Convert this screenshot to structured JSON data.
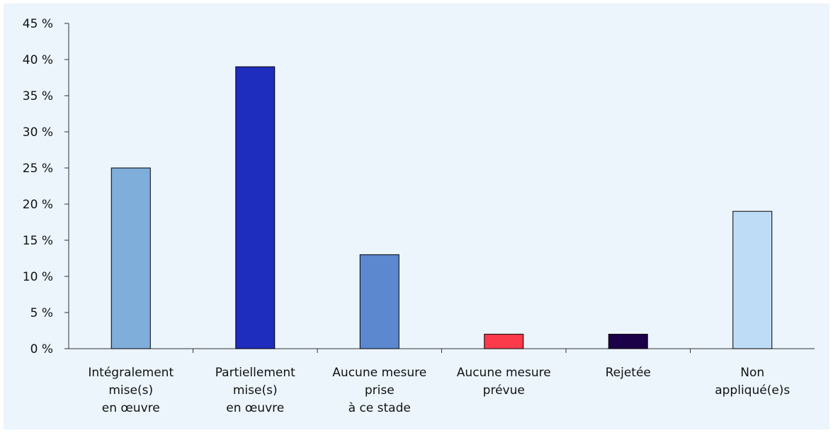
{
  "chart_data": {
    "type": "bar",
    "categories": [
      [
        "Intégralement",
        "mise(s)",
        "en œuvre"
      ],
      [
        "Partiellement",
        "mise(s)",
        "en œuvre"
      ],
      [
        "Aucune mesure",
        "prise",
        "à ce stade"
      ],
      [
        "Aucune mesure",
        "prévue"
      ],
      [
        "Rejetée"
      ],
      [
        "Non",
        "appliqué(e)s"
      ]
    ],
    "values": [
      25,
      39,
      13,
      2,
      2,
      19
    ],
    "colors": [
      "#80aedb",
      "#1f2dbf",
      "#5b88cf",
      "#fb3a4a",
      "#1b0148",
      "#bfdcf7"
    ],
    "ylim": [
      0,
      45
    ],
    "yticks": [
      0,
      5,
      10,
      15,
      20,
      25,
      30,
      35,
      40,
      45
    ],
    "ytick_labels": [
      "0 %",
      "5 %",
      "10 %",
      "15 %",
      "20 %",
      "25 %",
      "30 %",
      "35 %",
      "40 %",
      "45 %"
    ],
    "title": "",
    "xlabel": "",
    "ylabel": "",
    "grid": false,
    "background": "#ecf5fc"
  }
}
